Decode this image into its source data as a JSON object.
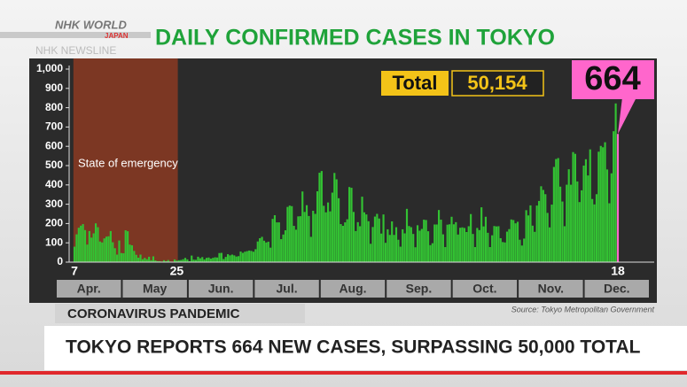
{
  "header": {
    "logo": "NHK WORLD",
    "logo_sub": "JAPAN",
    "program": "NHK NEWSLINE"
  },
  "chart_data": {
    "type": "bar",
    "title": "DAILY CONFIRMED CASES IN TOKYO",
    "categories": [
      "7",
      null,
      null,
      null,
      null,
      null,
      null,
      null,
      null,
      null,
      null,
      null,
      null,
      null,
      null,
      null,
      null,
      null,
      null,
      null,
      null,
      null,
      null,
      null,
      null,
      null,
      null,
      null,
      null,
      null,
      null,
      null,
      null,
      null,
      null,
      null,
      null,
      null,
      null,
      null,
      null,
      null,
      null,
      null,
      null,
      null,
      null,
      null,
      "25",
      null,
      null,
      null,
      null,
      null,
      null,
      null,
      null,
      null,
      null,
      null,
      null,
      null,
      null,
      null,
      null,
      null,
      null,
      null,
      null,
      null,
      null,
      null,
      null,
      null,
      null,
      null,
      null,
      null,
      null,
      null,
      null,
      null,
      null,
      null,
      null,
      null,
      null,
      null,
      null,
      null,
      null,
      null,
      null,
      null,
      null,
      null,
      null,
      null,
      null,
      null,
      null,
      null,
      null,
      null,
      null,
      null,
      null,
      null,
      null,
      null,
      null,
      null,
      null,
      null,
      null,
      null,
      null,
      null,
      null,
      null,
      null,
      null,
      null,
      null,
      null,
      null,
      null,
      null,
      null,
      null,
      null,
      null,
      null,
      null,
      null,
      null,
      null,
      null,
      null,
      null,
      null,
      null,
      null,
      null,
      null,
      null,
      null,
      null,
      null,
      null,
      null,
      null,
      null,
      null,
      null,
      null,
      null,
      null,
      null,
      null,
      null,
      null,
      null,
      null,
      null,
      null,
      null,
      null,
      null,
      null,
      null,
      null,
      null,
      null,
      null,
      null,
      null,
      null,
      null,
      null,
      null,
      null,
      null,
      null,
      null,
      null,
      null,
      null,
      null,
      null,
      null,
      null,
      null,
      null,
      null,
      null,
      null,
      null,
      null,
      null,
      null,
      null,
      null,
      null,
      null,
      null,
      null,
      null,
      null,
      null,
      null,
      null,
      null,
      null,
      null,
      null,
      null,
      null,
      null,
      null,
      null,
      null,
      null,
      null,
      null,
      null,
      null,
      null,
      null,
      null,
      null,
      null,
      null,
      null,
      null,
      null,
      null,
      null,
      null,
      null,
      null,
      null,
      null,
      null,
      null,
      null,
      null,
      null,
      null,
      null,
      null,
      null,
      null,
      null,
      null,
      "18"
    ],
    "months": [
      "Apr.",
      "May",
      "Jun.",
      "Jul.",
      "Aug.",
      "Sep.",
      "Oct.",
      "Nov.",
      "Dec."
    ],
    "values": [
      80,
      144,
      178,
      189,
      197,
      166,
      91,
      161,
      127,
      149,
      201,
      181,
      107,
      102,
      123,
      132,
      134,
      161,
      103,
      72,
      39,
      112,
      47,
      46,
      165,
      160,
      91,
      87,
      58,
      38,
      23,
      39,
      15,
      22,
      15,
      28,
      10,
      30,
      9,
      5,
      5,
      3,
      10,
      5,
      11,
      3,
      2,
      14,
      8,
      10,
      11,
      15,
      22,
      14,
      5,
      34,
      13,
      12,
      28,
      20,
      26,
      14,
      22,
      24,
      18,
      22,
      25,
      24,
      47,
      48,
      16,
      27,
      41,
      35,
      39,
      35,
      29,
      31,
      55,
      48,
      54,
      57,
      60,
      58,
      54,
      67,
      107,
      124,
      131,
      111,
      102,
      106,
      75,
      224,
      243,
      206,
      206,
      119,
      143,
      165,
      286,
      293,
      290,
      188,
      168,
      237,
      238,
      366,
      260,
      295,
      239,
      131,
      266,
      250,
      367,
      463,
      472,
      292,
      258,
      309,
      263,
      360,
      462,
      429,
      331,
      197,
      188,
      206,
      222,
      389,
      385,
      260,
      161,
      207,
      186,
      339,
      258,
      247,
      212,
      95,
      182,
      236,
      250,
      226,
      148,
      247,
      100,
      170,
      141,
      211,
      141,
      181,
      116,
      80,
      170,
      149,
      276,
      187,
      181,
      146,
      77,
      191,
      163,
      172,
      220,
      218,
      160,
      88,
      98,
      195,
      195,
      270,
      220,
      144,
      78,
      194,
      196,
      235,
      196,
      207,
      143,
      178,
      180,
      177,
      156,
      186,
      249,
      146,
      78,
      177,
      166,
      284,
      185,
      235,
      152,
      78,
      139,
      187,
      185,
      186,
      124,
      104,
      102,
      158,
      171,
      221,
      218,
      201,
      209,
      116,
      86,
      122,
      269,
      242,
      294,
      189,
      157,
      293,
      317,
      393,
      374,
      352,
      255,
      180,
      298,
      493,
      534,
      539,
      391,
      314,
      186,
      401,
      481,
      401,
      570,
      561,
      418,
      311,
      372,
      500,
      533,
      449,
      584,
      327,
      299,
      352,
      572,
      602,
      595,
      621,
      480,
      305,
      460,
      678,
      822,
      664
    ],
    "color": "#33c233",
    "highlight_color": "#ff66cc",
    "ylim": [
      0,
      1000
    ],
    "yticks": [
      0,
      100,
      200,
      300,
      400,
      500,
      600,
      700,
      800,
      900,
      {
        "value": 1000,
        "label": "1,000"
      }
    ],
    "annotation": "State of emergency",
    "annotation_color": "#8b3a22",
    "total": {
      "label": "Total",
      "value": "50,154"
    },
    "source": "Source: Tokyo Metropolitan Government"
  },
  "lower_third": {
    "tag": "CORONAVIRUS PANDEMIC",
    "headline": "TOKYO REPORTS 664 NEW CASES, SURPASSING 50,000 TOTAL"
  }
}
